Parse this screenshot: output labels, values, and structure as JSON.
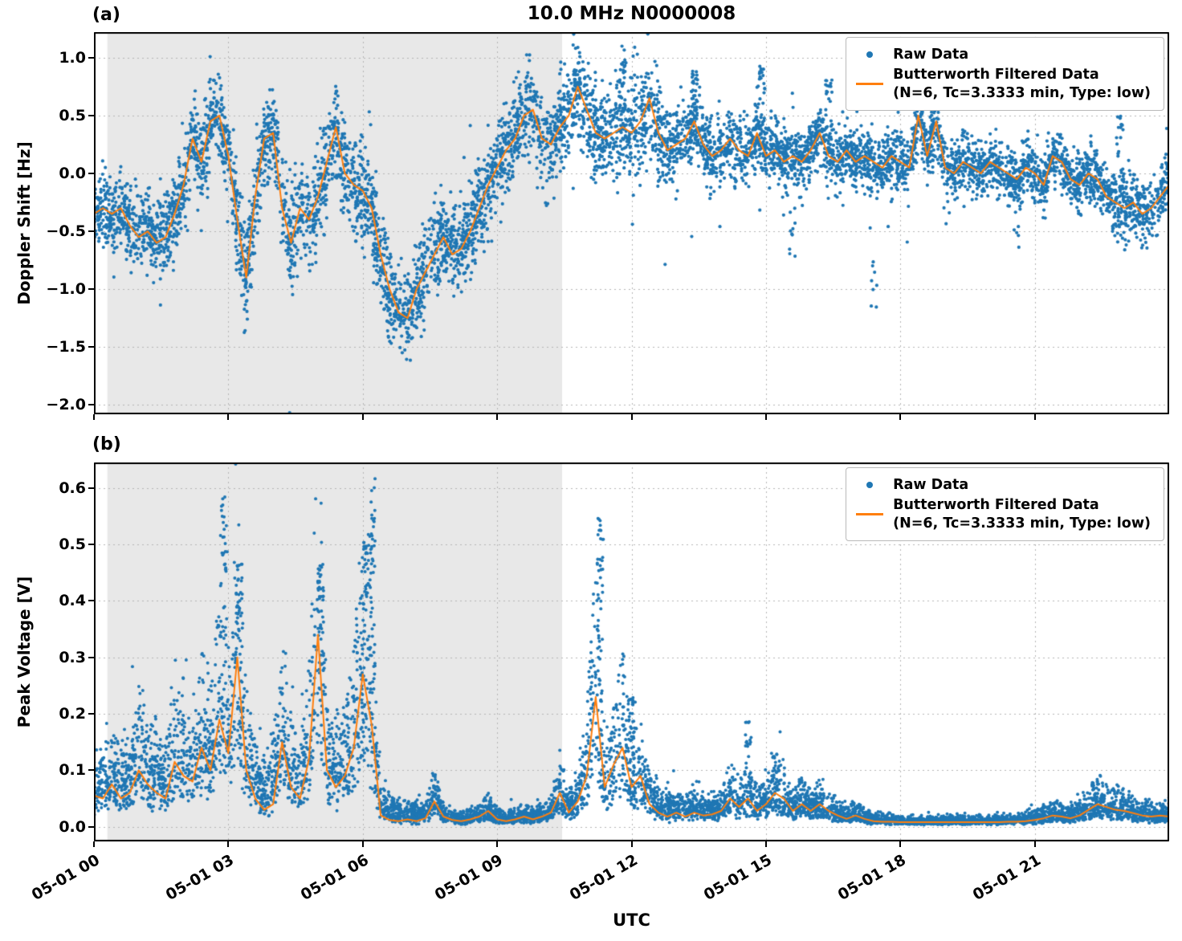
{
  "figure": {
    "title": "10.0 MHz N0000008",
    "xlabel": "UTC",
    "panel_a_tag": "(a)",
    "panel_b_tag": "(b)",
    "colors": {
      "raw": "#1f77b4",
      "filtered": "#ff7f0e",
      "shade": "#e8e8e8",
      "grid": "#b5b5b5",
      "frame": "#000000"
    },
    "legend": {
      "raw_label": "Raw Data",
      "filtered_label": "Butterworth Filtered Data",
      "filtered_sublabel": "(N=6, Tc=3.3333 min, Type: low)"
    }
  },
  "chart_data": [
    {
      "type": "scatter",
      "panel": "a",
      "title": "10.0 MHz N0000008",
      "ylabel": "Doppler Shift [Hz]",
      "xlabel": "UTC",
      "x_unit": "hours after 05-01 00:00 UTC",
      "xlim": [
        0,
        24
      ],
      "ylim": [
        -2.08,
        1.22
      ],
      "xticks": [
        0,
        3,
        6,
        9,
        12,
        15,
        18,
        21
      ],
      "xtick_labels": [
        "05-01 00",
        "05-01 03",
        "05-01 06",
        "05-01 09",
        "05-01 12",
        "05-01 15",
        "05-01 18",
        "05-01 21"
      ],
      "yticks": [
        1.0,
        0.5,
        0.0,
        -0.5,
        -1.0,
        -1.5,
        -2.0
      ],
      "ytick_labels": [
        "1.0",
        "0.5",
        "0.0",
        "−0.5",
        "−1.0",
        "−1.5",
        "−2.0"
      ],
      "grid": true,
      "legend_position": "upper right",
      "shaded_region": {
        "x0": 0.3,
        "x1": 10.45,
        "color": "#e8e8e8"
      },
      "series": [
        {
          "name": "Raw Data",
          "style": "scatter",
          "color": "#1f77b4",
          "marker_size": 2.1,
          "gen": {
            "seed": 20240501,
            "n": 7000,
            "mode": "gauss",
            "sigma_x_step": 2,
            "sigma": [
              0.15,
              0.18,
              0.2,
              0.22,
              0.18,
              0.2,
              0.22,
              0.15,
              0.13,
              0.13,
              0.12,
              0.12,
              0.13
            ],
            "outlier_prob": 0.012,
            "outlier_scale": 2.8,
            "spikes": [
              {
                "t": 11.8,
                "top": 1.1,
                "n": 30
              },
              {
                "t": 13.4,
                "top": 0.9,
                "n": 25
              },
              {
                "t": 14.9,
                "top": 0.95,
                "n": 30
              },
              {
                "t": 16.4,
                "top": 0.85,
                "n": 25
              },
              {
                "t": 18.45,
                "top": 0.95,
                "n": 35
              },
              {
                "t": 18.75,
                "top": 0.8,
                "n": 25
              },
              {
                "t": 22.9,
                "top": 0.5,
                "n": 20
              },
              {
                "t": 15.6,
                "top": -0.95,
                "n": 12
              },
              {
                "t": 17.4,
                "top": -1.25,
                "n": 10
              },
              {
                "t": 20.6,
                "top": -0.7,
                "n": 10
              }
            ]
          }
        },
        {
          "name": "Butterworth Filtered Data (N=6, Tc=3.3333 min, Type: low)",
          "style": "line",
          "color": "#ff7f0e",
          "x_start": 0,
          "x_step": 0.2,
          "values": [
            -0.35,
            -0.3,
            -0.35,
            -0.3,
            -0.45,
            -0.55,
            -0.5,
            -0.6,
            -0.55,
            -0.35,
            -0.1,
            0.3,
            0.1,
            0.45,
            0.5,
            0.15,
            -0.4,
            -0.9,
            -0.2,
            0.3,
            0.35,
            -0.3,
            -0.6,
            -0.3,
            -0.4,
            -0.2,
            0.1,
            0.4,
            0.0,
            -0.1,
            -0.15,
            -0.3,
            -0.7,
            -1.0,
            -1.2,
            -1.25,
            -1.0,
            -0.85,
            -0.7,
            -0.55,
            -0.7,
            -0.65,
            -0.5,
            -0.3,
            -0.1,
            0.05,
            0.2,
            0.3,
            0.5,
            0.55,
            0.3,
            0.25,
            0.4,
            0.5,
            0.75,
            0.55,
            0.35,
            0.3,
            0.35,
            0.4,
            0.35,
            0.45,
            0.65,
            0.35,
            0.2,
            0.25,
            0.3,
            0.45,
            0.25,
            0.15,
            0.2,
            0.3,
            0.2,
            0.15,
            0.35,
            0.15,
            0.2,
            0.1,
            0.15,
            0.1,
            0.2,
            0.35,
            0.15,
            0.1,
            0.2,
            0.1,
            0.15,
            0.1,
            0.05,
            0.15,
            0.1,
            0.05,
            0.5,
            0.15,
            0.45,
            0.05,
            0.0,
            0.1,
            0.05,
            0.0,
            0.1,
            0.05,
            0.0,
            -0.05,
            0.05,
            0.0,
            -0.1,
            0.15,
            0.1,
            -0.05,
            -0.1,
            0.0,
            -0.05,
            -0.2,
            -0.25,
            -0.3,
            -0.25,
            -0.35,
            -0.3,
            -0.2,
            -0.1
          ]
        }
      ]
    },
    {
      "type": "scatter",
      "panel": "b",
      "ylabel": "Peak Voltage [V]",
      "xlabel": "UTC",
      "x_unit": "hours after 05-01 00:00 UTC",
      "xlim": [
        0,
        24
      ],
      "ylim": [
        -0.026,
        0.645
      ],
      "xticks": [
        0,
        3,
        6,
        9,
        12,
        15,
        18,
        21
      ],
      "xtick_labels": [
        "05-01 00",
        "05-01 03",
        "05-01 06",
        "05-01 09",
        "05-01 12",
        "05-01 15",
        "05-01 18",
        "05-01 21"
      ],
      "yticks": [
        0.0,
        0.1,
        0.2,
        0.3,
        0.4,
        0.5,
        0.6
      ],
      "ytick_labels": [
        "0.0",
        "0.1",
        "0.2",
        "0.3",
        "0.4",
        "0.5",
        "0.6"
      ],
      "grid": true,
      "legend_position": "upper right",
      "shaded_region": {
        "x0": 0.3,
        "x1": 10.45,
        "color": "#e8e8e8"
      },
      "series": [
        {
          "name": "Raw Data",
          "style": "scatter",
          "color": "#1f77b4",
          "marker_size": 2.0,
          "gen": {
            "seed": 98765,
            "n": 7000,
            "mode": "skewed",
            "sigma_x_step": 2,
            "sigma": [
              0.05,
              0.07,
              0.08,
              0.05,
              0.01,
              0.01,
              0.04,
              0.02,
              0.012,
              0.006,
              0.006,
              0.012,
              0.012
            ],
            "outlier_prob": 0.004,
            "outlier_scale": 1.6,
            "spikes": [
              {
                "t": 2.9,
                "top": 0.59,
                "n": 40
              },
              {
                "t": 3.25,
                "top": 0.47,
                "n": 30
              },
              {
                "t": 5.05,
                "top": 0.47,
                "n": 35
              },
              {
                "t": 6.2,
                "top": 0.62,
                "n": 50
              },
              {
                "t": 6.05,
                "top": 0.52,
                "n": 30
              },
              {
                "t": 11.3,
                "top": 0.55,
                "n": 45
              },
              {
                "t": 12.0,
                "top": 0.23,
                "n": 25
              },
              {
                "t": 14.6,
                "top": 0.19,
                "n": 20
              },
              {
                "t": 15.2,
                "top": 0.13,
                "n": 20
              }
            ]
          }
        },
        {
          "name": "Butterworth Filtered Data (N=6, Tc=3.3333 min, Type: low)",
          "style": "line",
          "color": "#ff7f0e",
          "x_start": 0,
          "x_step": 0.2,
          "values": [
            0.055,
            0.05,
            0.075,
            0.05,
            0.06,
            0.1,
            0.075,
            0.06,
            0.05,
            0.115,
            0.09,
            0.08,
            0.14,
            0.1,
            0.19,
            0.13,
            0.3,
            0.1,
            0.05,
            0.03,
            0.04,
            0.15,
            0.07,
            0.05,
            0.12,
            0.34,
            0.1,
            0.07,
            0.09,
            0.14,
            0.27,
            0.18,
            0.02,
            0.012,
            0.01,
            0.013,
            0.01,
            0.015,
            0.045,
            0.018,
            0.012,
            0.01,
            0.013,
            0.018,
            0.028,
            0.013,
            0.01,
            0.013,
            0.018,
            0.013,
            0.018,
            0.025,
            0.06,
            0.025,
            0.045,
            0.09,
            0.23,
            0.07,
            0.11,
            0.14,
            0.07,
            0.09,
            0.04,
            0.025,
            0.018,
            0.025,
            0.018,
            0.025,
            0.02,
            0.022,
            0.028,
            0.05,
            0.035,
            0.05,
            0.028,
            0.04,
            0.06,
            0.05,
            0.028,
            0.04,
            0.028,
            0.04,
            0.028,
            0.02,
            0.014,
            0.02,
            0.014,
            0.01,
            0.009,
            0.009,
            0.008,
            0.008,
            0.008,
            0.008,
            0.008,
            0.008,
            0.008,
            0.008,
            0.008,
            0.008,
            0.008,
            0.008,
            0.009,
            0.009,
            0.01,
            0.012,
            0.015,
            0.02,
            0.018,
            0.015,
            0.02,
            0.03,
            0.04,
            0.035,
            0.03,
            0.028,
            0.024,
            0.02,
            0.018,
            0.02,
            0.018
          ]
        }
      ]
    }
  ]
}
